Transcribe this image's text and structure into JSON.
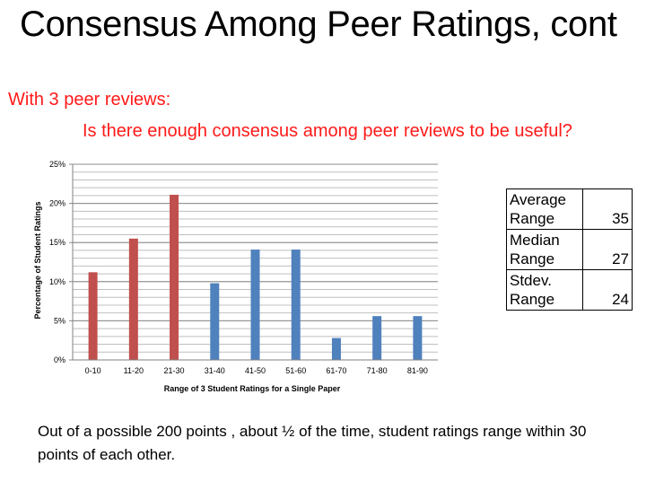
{
  "slide": {
    "title": "Consensus Among Peer Ratings, cont",
    "line1": "With 3 peer reviews:",
    "line2": "Is there enough consensus among peer reviews to be useful?",
    "footnote": "Out of a possible 200 points , about ½ of the time, student ratings range within 30 points of each other."
  },
  "colors": {
    "accent_text": "#ff1a1a",
    "bar_red": "#c0504d",
    "bar_blue": "#4f81bd",
    "grid": "#bfbfbf"
  },
  "chart_data": {
    "type": "bar",
    "title": "",
    "xlabel": "Range of 3 Student Ratings for a Single Paper",
    "ylabel": "Percentage of Student Ratings",
    "categories": [
      "0-10",
      "11-20",
      "21-30",
      "31-40",
      "41-50",
      "51-60",
      "61-70",
      "71-80",
      "81-90"
    ],
    "values": [
      11.2,
      15.5,
      21.1,
      9.8,
      14.1,
      14.1,
      2.8,
      5.6,
      5.6
    ],
    "bar_colors": [
      "#c0504d",
      "#c0504d",
      "#c0504d",
      "#4f81bd",
      "#4f81bd",
      "#4f81bd",
      "#4f81bd",
      "#4f81bd",
      "#4f81bd"
    ],
    "ylim": [
      0,
      25
    ],
    "y_ticks": [
      0,
      5,
      10,
      15,
      20,
      25
    ],
    "y_tick_labels": [
      "0%",
      "5%",
      "10%",
      "15%",
      "20%",
      "25%"
    ],
    "minor_grid_step": 1,
    "grid": true,
    "legend": "none"
  },
  "stats": [
    {
      "label_line1": "Average",
      "label_line2": "Range",
      "value": "35"
    },
    {
      "label_line1": "Median",
      "label_line2": "Range",
      "value": "27"
    },
    {
      "label_line1": "Stdev.",
      "label_line2": "Range",
      "value": "24"
    }
  ]
}
